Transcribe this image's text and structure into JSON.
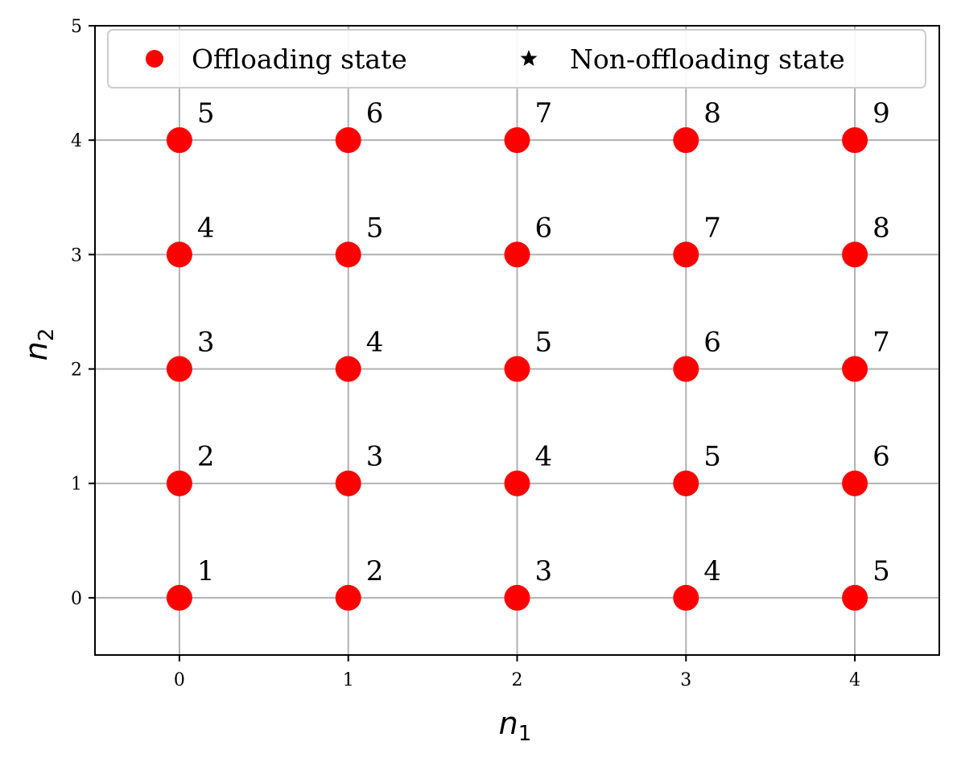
{
  "chart_data": {
    "type": "scatter",
    "xlabel": {
      "base": "n",
      "sub": "1"
    },
    "ylabel": {
      "base": "n",
      "sub": "2"
    },
    "xlim": [
      -0.5,
      4.5
    ],
    "ylim": [
      -0.5,
      5
    ],
    "xticks": [
      "0",
      "1",
      "2",
      "3",
      "4"
    ],
    "yticks": [
      "0",
      "1",
      "2",
      "3",
      "4",
      "5"
    ],
    "grid": true,
    "legend_position": "top",
    "series": [
      {
        "name": "Offloading state",
        "marker": "circle",
        "color": "#ff0000",
        "points": [
          {
            "x": 0,
            "y": 0,
            "label": "1"
          },
          {
            "x": 1,
            "y": 0,
            "label": "2"
          },
          {
            "x": 2,
            "y": 0,
            "label": "3"
          },
          {
            "x": 3,
            "y": 0,
            "label": "4"
          },
          {
            "x": 4,
            "y": 0,
            "label": "5"
          },
          {
            "x": 0,
            "y": 1,
            "label": "2"
          },
          {
            "x": 1,
            "y": 1,
            "label": "3"
          },
          {
            "x": 2,
            "y": 1,
            "label": "4"
          },
          {
            "x": 3,
            "y": 1,
            "label": "5"
          },
          {
            "x": 4,
            "y": 1,
            "label": "6"
          },
          {
            "x": 0,
            "y": 2,
            "label": "3"
          },
          {
            "x": 1,
            "y": 2,
            "label": "4"
          },
          {
            "x": 2,
            "y": 2,
            "label": "5"
          },
          {
            "x": 3,
            "y": 2,
            "label": "6"
          },
          {
            "x": 4,
            "y": 2,
            "label": "7"
          },
          {
            "x": 0,
            "y": 3,
            "label": "4"
          },
          {
            "x": 1,
            "y": 3,
            "label": "5"
          },
          {
            "x": 2,
            "y": 3,
            "label": "6"
          },
          {
            "x": 3,
            "y": 3,
            "label": "7"
          },
          {
            "x": 4,
            "y": 3,
            "label": "8"
          },
          {
            "x": 0,
            "y": 4,
            "label": "5"
          },
          {
            "x": 1,
            "y": 4,
            "label": "6"
          },
          {
            "x": 2,
            "y": 4,
            "label": "7"
          },
          {
            "x": 3,
            "y": 4,
            "label": "8"
          },
          {
            "x": 4,
            "y": 4,
            "label": "9"
          }
        ]
      },
      {
        "name": "Non-offloading state",
        "marker": "star",
        "color": "#000000",
        "points": []
      }
    ]
  }
}
